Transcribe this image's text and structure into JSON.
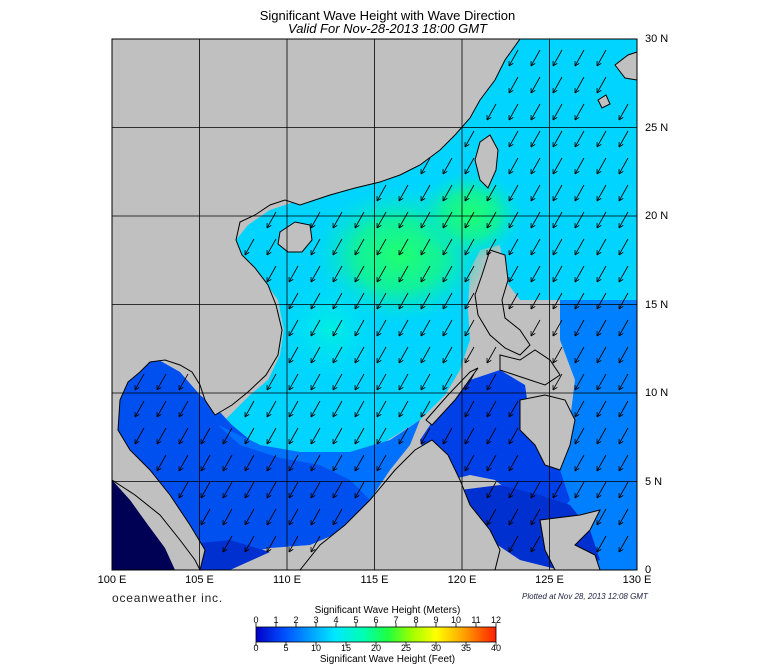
{
  "title": "Significant Wave Height with Wave Direction",
  "subtitle": "Valid For Nov-28-2013 18:00 GMT",
  "brand": "oceanweather inc.",
  "plotted_label": "Plotted at Nov 28, 2013 12:08 GMT",
  "colorbar": {
    "top_label": "Significant Wave Height (Meters)",
    "bottom_label": "Significant Wave Height (Feet)",
    "meters_ticks": [
      "0",
      "1",
      "2",
      "3",
      "4",
      "5",
      "6",
      "7",
      "8",
      "9",
      "10",
      "11",
      "12"
    ],
    "feet_ticks": [
      "0",
      "5",
      "10",
      "15",
      "20",
      "25",
      "30",
      "35",
      "40"
    ],
    "colors": [
      "#0000c8",
      "#0040ff",
      "#0090ff",
      "#00d8ff",
      "#00ffd0",
      "#00ff80",
      "#40ff00",
      "#b0ff00",
      "#ffff00",
      "#ffc000",
      "#ff8000",
      "#ff3000"
    ]
  },
  "map": {
    "lon_labels": [
      "100 E",
      "105 E",
      "110 E",
      "115 E",
      "120 E",
      "125 E",
      "130 E"
    ],
    "lat_labels": [
      "30 N",
      "25 N",
      "20 N",
      "15 N",
      "10 N",
      "5 N",
      "0"
    ],
    "lon_range": [
      100,
      130
    ],
    "lat_range": [
      0,
      30
    ],
    "grid": true,
    "land_color": "#c0c0c0",
    "wave_direction": "southwest"
  },
  "chart_data": {
    "type": "heatmap",
    "title": "Significant Wave Height with Wave Direction",
    "subtitle": "Valid For Nov-28-2013 18:00 GMT",
    "xlabel": "",
    "ylabel": "",
    "xlim": [
      100,
      130
    ],
    "ylim": [
      0,
      30
    ],
    "colorbar_range_m": [
      0,
      12
    ],
    "colorbar_range_ft": [
      0,
      40
    ]
  }
}
